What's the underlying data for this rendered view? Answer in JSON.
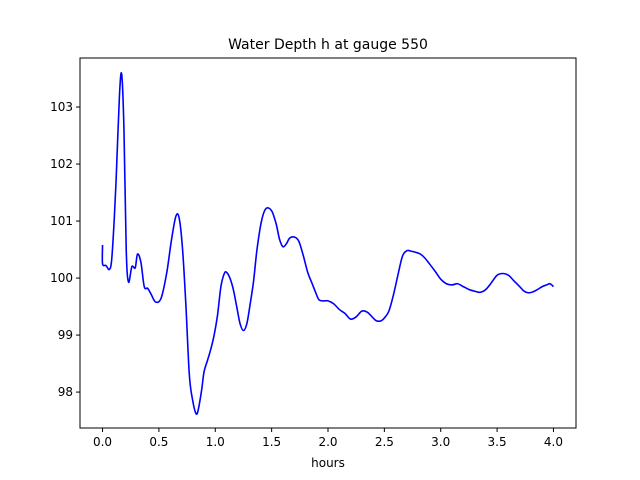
{
  "chart_data": {
    "type": "line",
    "title": "Water Depth h at gauge 550",
    "xlabel": "hours",
    "ylabel": "",
    "xlim": [
      -0.2,
      4.2
    ],
    "ylim": [
      97.37,
      103.86
    ],
    "xticks": [
      0.0,
      0.5,
      1.0,
      1.5,
      2.0,
      2.5,
      3.0,
      3.5,
      4.0
    ],
    "xtick_labels": [
      "0.0",
      "0.5",
      "1.0",
      "1.5",
      "2.0",
      "2.5",
      "3.0",
      "3.5",
      "4.0"
    ],
    "yticks": [
      98,
      99,
      100,
      101,
      102,
      103
    ],
    "ytick_labels": [
      "98",
      "99",
      "100",
      "101",
      "102",
      "103"
    ],
    "grid": false,
    "legend": "none",
    "series": [
      {
        "color": "#0000ff",
        "x": [
          0.0,
          0.0,
          0.03,
          0.06,
          0.08,
          0.1,
          0.12,
          0.15,
          0.17,
          0.19,
          0.21,
          0.23,
          0.26,
          0.29,
          0.31,
          0.34,
          0.37,
          0.4,
          0.43,
          0.47,
          0.52,
          0.57,
          0.61,
          0.65,
          0.68,
          0.71,
          0.74,
          0.77,
          0.8,
          0.83,
          0.85,
          0.88,
          0.9,
          0.93,
          0.96,
          0.99,
          1.02,
          1.05,
          1.08,
          1.1,
          1.13,
          1.16,
          1.19,
          1.22,
          1.25,
          1.28,
          1.31,
          1.34,
          1.37,
          1.41,
          1.45,
          1.5,
          1.54,
          1.57,
          1.6,
          1.63,
          1.66,
          1.7,
          1.74,
          1.78,
          1.82,
          1.86,
          1.89,
          1.92,
          1.96,
          2.0,
          2.05,
          2.1,
          2.15,
          2.2,
          2.25,
          2.3,
          2.35,
          2.4,
          2.43,
          2.47,
          2.5,
          2.54,
          2.58,
          2.62,
          2.66,
          2.7,
          2.74,
          2.78,
          2.82,
          2.86,
          2.9,
          2.95,
          3.0,
          3.05,
          3.1,
          3.15,
          3.2,
          3.25,
          3.3,
          3.35,
          3.4,
          3.45,
          3.5,
          3.55,
          3.6,
          3.65,
          3.7,
          3.74,
          3.78,
          3.82,
          3.86,
          3.9,
          3.94,
          3.97,
          4.0
        ],
        "values": [
          100.58,
          100.25,
          100.22,
          100.15,
          100.3,
          100.9,
          101.7,
          103.2,
          103.57,
          102.6,
          100.5,
          99.93,
          100.2,
          100.18,
          100.42,
          100.28,
          99.85,
          99.82,
          99.72,
          99.58,
          99.65,
          100.1,
          100.65,
          101.08,
          101.05,
          100.5,
          99.5,
          98.3,
          97.85,
          97.62,
          97.7,
          98.05,
          98.35,
          98.55,
          98.75,
          99.0,
          99.35,
          99.85,
          100.08,
          100.1,
          100.0,
          99.8,
          99.5,
          99.2,
          99.08,
          99.2,
          99.55,
          99.95,
          100.5,
          101.0,
          101.22,
          101.18,
          100.95,
          100.68,
          100.55,
          100.6,
          100.7,
          100.72,
          100.65,
          100.4,
          100.1,
          99.9,
          99.75,
          99.62,
          99.6,
          99.6,
          99.55,
          99.45,
          99.38,
          99.28,
          99.32,
          99.42,
          99.4,
          99.3,
          99.25,
          99.25,
          99.3,
          99.42,
          99.7,
          100.05,
          100.38,
          100.48,
          100.47,
          100.45,
          100.42,
          100.35,
          100.25,
          100.12,
          99.98,
          99.9,
          99.88,
          99.9,
          99.85,
          99.8,
          99.77,
          99.75,
          99.8,
          99.92,
          100.05,
          100.08,
          100.05,
          99.95,
          99.85,
          99.77,
          99.74,
          99.76,
          99.8,
          99.85,
          99.88,
          99.9,
          99.85
        ]
      }
    ]
  }
}
